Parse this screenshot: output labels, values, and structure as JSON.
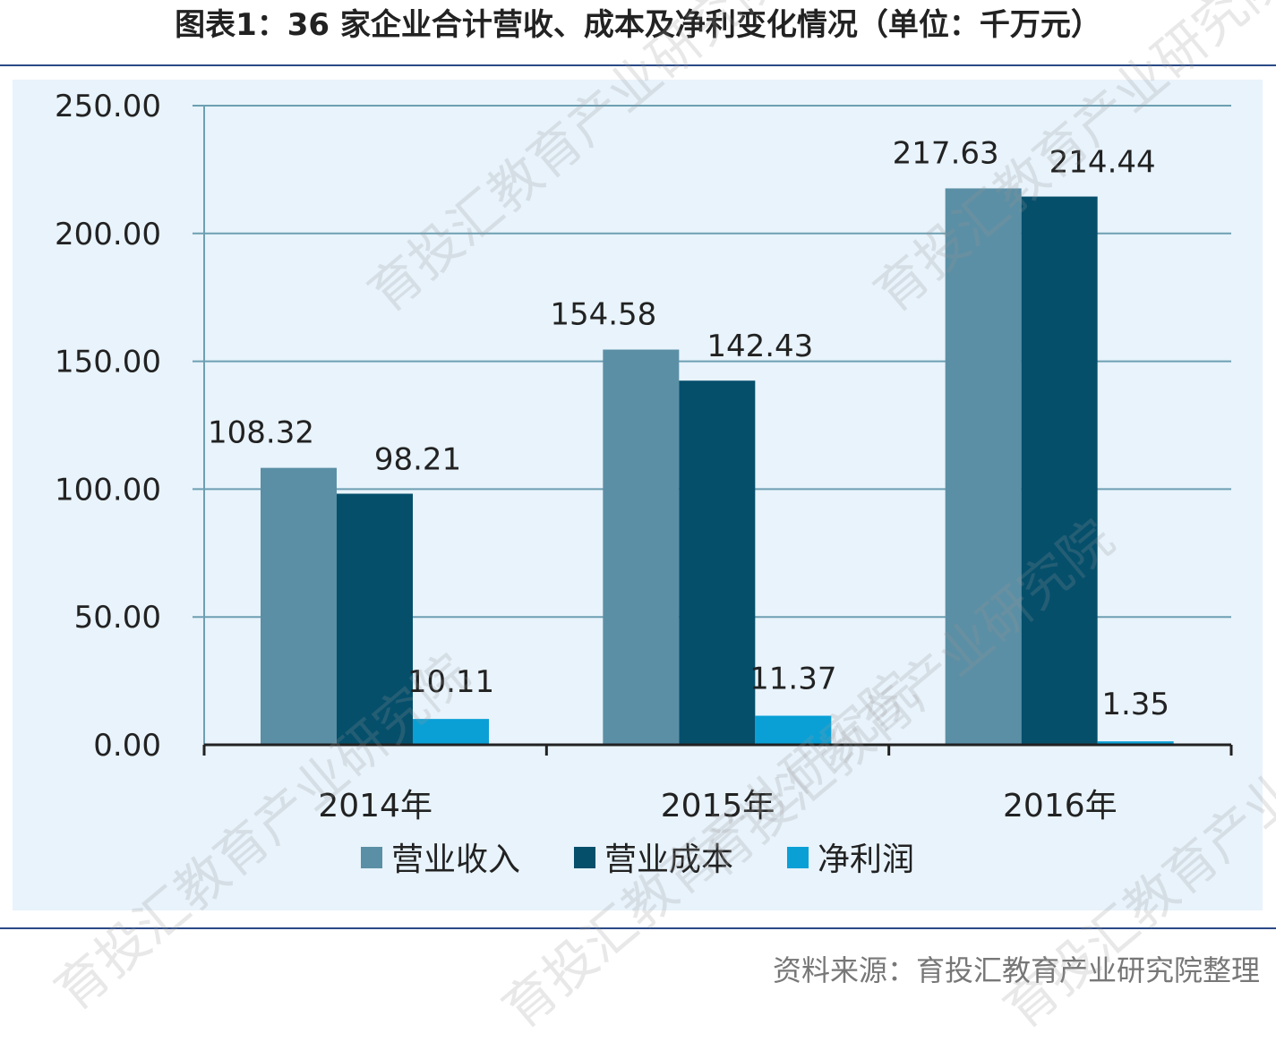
{
  "title": "图表1：36 家企业合计营收、成本及净利变化情况（单位：千万元）",
  "source": "资料来源：育投汇教育产业研究院整理",
  "watermarks": [
    "育投汇教育产业研究院",
    "育投汇教育产业研究院",
    "育投汇教育产业研究院",
    "育投汇教育产业研究院",
    "育投汇教育产业研究院",
    "育投汇教育产业研究院"
  ],
  "colors": {
    "revenue": "#5b8fa5",
    "cost": "#054f6b",
    "profit": "#0aa0d6",
    "grid": "#6d9fb2",
    "axis": "#222222",
    "panel": "#e8f3fb"
  },
  "chart_data": {
    "type": "bar",
    "categories": [
      "2014年",
      "2015年",
      "2016年"
    ],
    "series": [
      {
        "name": "营业收入",
        "values": [
          108.32,
          154.58,
          217.63
        ],
        "labels": [
          "108.32",
          "154.58",
          "217.63"
        ]
      },
      {
        "name": "营业成本",
        "values": [
          98.21,
          142.43,
          214.44
        ],
        "labels": [
          "98.21",
          "142.43",
          "214.44"
        ]
      },
      {
        "name": "净利润",
        "values": [
          10.11,
          11.37,
          1.35
        ],
        "labels": [
          "10.11",
          "11.37",
          "1.35"
        ]
      }
    ],
    "yticks": [
      "0.00",
      "50.00",
      "100.00",
      "150.00",
      "200.00",
      "250.00"
    ],
    "ylim": [
      0,
      250
    ],
    "grid": true,
    "legend_position": "bottom-center"
  }
}
